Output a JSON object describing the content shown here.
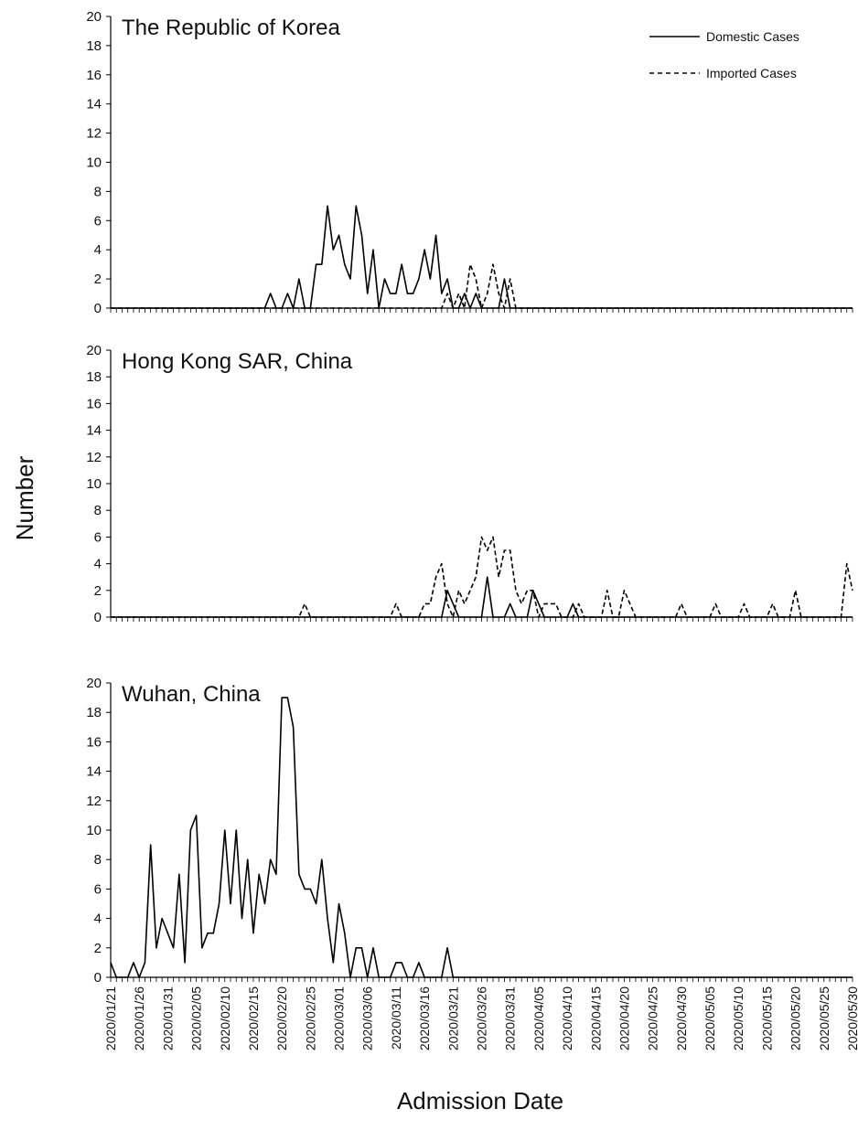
{
  "figure": {
    "ylabel": "Number",
    "xlabel": "Admission Date",
    "legend": {
      "domestic": "Domestic Cases",
      "imported": "Imported Cases"
    }
  },
  "chart_data": [
    {
      "type": "line",
      "title": "The Republic of Korea",
      "ylim": [
        0,
        20
      ],
      "yticks": [
        0,
        2,
        4,
        6,
        8,
        10,
        12,
        14,
        16,
        18,
        20
      ],
      "legend_position": "top-right",
      "x_range": [
        "2020/01/21",
        "2020/05/30"
      ],
      "series": [
        {
          "name": "Domestic Cases",
          "style": "solid",
          "points": [
            [
              "2020/01/21",
              0
            ],
            [
              "2020/02/17",
              0
            ],
            [
              "2020/02/18",
              1
            ],
            [
              "2020/02/19",
              0
            ],
            [
              "2020/02/20",
              0
            ],
            [
              "2020/02/21",
              1
            ],
            [
              "2020/02/22",
              0
            ],
            [
              "2020/02/23",
              2
            ],
            [
              "2020/02/24",
              0
            ],
            [
              "2020/02/25",
              0
            ],
            [
              "2020/02/26",
              3
            ],
            [
              "2020/02/27",
              3
            ],
            [
              "2020/02/28",
              7
            ],
            [
              "2020/02/29",
              4
            ],
            [
              "2020/03/01",
              5
            ],
            [
              "2020/03/02",
              3
            ],
            [
              "2020/03/03",
              2
            ],
            [
              "2020/03/04",
              7
            ],
            [
              "2020/03/05",
              5
            ],
            [
              "2020/03/06",
              1
            ],
            [
              "2020/03/07",
              4
            ],
            [
              "2020/03/08",
              0
            ],
            [
              "2020/03/09",
              2
            ],
            [
              "2020/03/10",
              1
            ],
            [
              "2020/03/11",
              1
            ],
            [
              "2020/03/12",
              3
            ],
            [
              "2020/03/13",
              1
            ],
            [
              "2020/03/14",
              1
            ],
            [
              "2020/03/15",
              2
            ],
            [
              "2020/03/16",
              4
            ],
            [
              "2020/03/17",
              2
            ],
            [
              "2020/03/18",
              5
            ],
            [
              "2020/03/19",
              1
            ],
            [
              "2020/03/20",
              2
            ],
            [
              "2020/03/21",
              0
            ],
            [
              "2020/03/22",
              0
            ],
            [
              "2020/03/23",
              1
            ],
            [
              "2020/03/24",
              0
            ],
            [
              "2020/03/25",
              1
            ],
            [
              "2020/03/26",
              0
            ],
            [
              "2020/03/27",
              0
            ],
            [
              "2020/03/28",
              0
            ],
            [
              "2020/03/29",
              0
            ],
            [
              "2020/03/30",
              2
            ],
            [
              "2020/03/31",
              0
            ],
            [
              "2020/05/30",
              0
            ]
          ]
        },
        {
          "name": "Imported Cases",
          "style": "dashed",
          "points": [
            [
              "2020/01/21",
              0
            ],
            [
              "2020/03/19",
              0
            ],
            [
              "2020/03/20",
              1
            ],
            [
              "2020/03/21",
              0
            ],
            [
              "2020/03/22",
              1
            ],
            [
              "2020/03/23",
              0
            ],
            [
              "2020/03/24",
              3
            ],
            [
              "2020/03/25",
              2
            ],
            [
              "2020/03/26",
              0
            ],
            [
              "2020/03/27",
              1
            ],
            [
              "2020/03/28",
              3
            ],
            [
              "2020/03/29",
              1
            ],
            [
              "2020/03/30",
              0
            ],
            [
              "2020/03/31",
              2
            ],
            [
              "2020/04/01",
              0
            ],
            [
              "2020/05/30",
              0
            ]
          ]
        }
      ]
    },
    {
      "type": "line",
      "title": "Hong Kong SAR, China",
      "ylim": [
        0,
        20
      ],
      "yticks": [
        0,
        2,
        4,
        6,
        8,
        10,
        12,
        14,
        16,
        18,
        20
      ],
      "x_range": [
        "2020/01/21",
        "2020/05/30"
      ],
      "series": [
        {
          "name": "Domestic Cases",
          "style": "solid",
          "points": [
            [
              "2020/01/21",
              0
            ],
            [
              "2020/03/19",
              0
            ],
            [
              "2020/03/20",
              2
            ],
            [
              "2020/03/21",
              1
            ],
            [
              "2020/03/22",
              0
            ],
            [
              "2020/03/26",
              0
            ],
            [
              "2020/03/27",
              3
            ],
            [
              "2020/03/28",
              0
            ],
            [
              "2020/03/30",
              0
            ],
            [
              "2020/03/31",
              1
            ],
            [
              "2020/04/01",
              0
            ],
            [
              "2020/04/03",
              0
            ],
            [
              "2020/04/04",
              2
            ],
            [
              "2020/04/05",
              1
            ],
            [
              "2020/04/06",
              0
            ],
            [
              "2020/04/10",
              0
            ],
            [
              "2020/04/11",
              1
            ],
            [
              "2020/04/12",
              0
            ],
            [
              "2020/05/30",
              0
            ]
          ]
        },
        {
          "name": "Imported Cases",
          "style": "dashed",
          "points": [
            [
              "2020/01/21",
              0
            ],
            [
              "2020/02/23",
              0
            ],
            [
              "2020/02/24",
              1
            ],
            [
              "2020/02/25",
              0
            ],
            [
              "2020/03/10",
              0
            ],
            [
              "2020/03/11",
              1
            ],
            [
              "2020/03/12",
              0
            ],
            [
              "2020/03/15",
              0
            ],
            [
              "2020/03/16",
              1
            ],
            [
              "2020/03/17",
              1
            ],
            [
              "2020/03/18",
              3
            ],
            [
              "2020/03/19",
              4
            ],
            [
              "2020/03/20",
              1
            ],
            [
              "2020/03/21",
              0
            ],
            [
              "2020/03/22",
              2
            ],
            [
              "2020/03/23",
              1
            ],
            [
              "2020/03/24",
              2
            ],
            [
              "2020/03/25",
              3
            ],
            [
              "2020/03/26",
              6
            ],
            [
              "2020/03/27",
              5
            ],
            [
              "2020/03/28",
              6
            ],
            [
              "2020/03/29",
              3
            ],
            [
              "2020/03/30",
              5
            ],
            [
              "2020/03/31",
              5
            ],
            [
              "2020/04/01",
              2
            ],
            [
              "2020/04/02",
              1
            ],
            [
              "2020/04/03",
              2
            ],
            [
              "2020/04/04",
              2
            ],
            [
              "2020/04/05",
              0
            ],
            [
              "2020/04/06",
              1
            ],
            [
              "2020/04/07",
              1
            ],
            [
              "2020/04/08",
              1
            ],
            [
              "2020/04/09",
              0
            ],
            [
              "2020/04/11",
              0
            ],
            [
              "2020/04/12",
              1
            ],
            [
              "2020/04/13",
              0
            ],
            [
              "2020/04/16",
              0
            ],
            [
              "2020/04/17",
              2
            ],
            [
              "2020/04/18",
              0
            ],
            [
              "2020/04/19",
              0
            ],
            [
              "2020/04/20",
              2
            ],
            [
              "2020/04/21",
              1
            ],
            [
              "2020/04/22",
              0
            ],
            [
              "2020/04/29",
              0
            ],
            [
              "2020/04/30",
              1
            ],
            [
              "2020/05/01",
              0
            ],
            [
              "2020/05/05",
              0
            ],
            [
              "2020/05/06",
              1
            ],
            [
              "2020/05/07",
              0
            ],
            [
              "2020/05/10",
              0
            ],
            [
              "2020/05/11",
              1
            ],
            [
              "2020/05/12",
              0
            ],
            [
              "2020/05/15",
              0
            ],
            [
              "2020/05/16",
              1
            ],
            [
              "2020/05/17",
              0
            ],
            [
              "2020/05/19",
              0
            ],
            [
              "2020/05/20",
              2
            ],
            [
              "2020/05/21",
              0
            ],
            [
              "2020/05/28",
              0
            ],
            [
              "2020/05/29",
              4
            ],
            [
              "2020/05/30",
              2
            ]
          ]
        }
      ]
    },
    {
      "type": "line",
      "title": "Wuhan, China",
      "ylim": [
        0,
        20
      ],
      "yticks": [
        0,
        2,
        4,
        6,
        8,
        10,
        12,
        14,
        16,
        18,
        20
      ],
      "x_range": [
        "2020/01/21",
        "2020/05/30"
      ],
      "xticks": [
        "2020/01/21",
        "2020/01/26",
        "2020/01/31",
        "2020/02/05",
        "2020/02/10",
        "2020/02/15",
        "2020/02/20",
        "2020/02/25",
        "2020/03/01",
        "2020/03/06",
        "2020/03/11",
        "2020/03/16",
        "2020/03/21",
        "2020/03/26",
        "2020/03/31",
        "2020/04/05",
        "2020/04/10",
        "2020/04/15",
        "2020/04/20",
        "2020/04/25",
        "2020/04/30",
        "2020/05/05",
        "2020/05/10",
        "2020/05/15",
        "2020/05/20",
        "2020/05/25",
        "2020/05/30"
      ],
      "series": [
        {
          "name": "Domestic Cases",
          "style": "solid",
          "points": [
            [
              "2020/01/21",
              1
            ],
            [
              "2020/01/22",
              0
            ],
            [
              "2020/01/23",
              0
            ],
            [
              "2020/01/24",
              0
            ],
            [
              "2020/01/25",
              1
            ],
            [
              "2020/01/26",
              0
            ],
            [
              "2020/01/27",
              1
            ],
            [
              "2020/01/28",
              9
            ],
            [
              "2020/01/29",
              2
            ],
            [
              "2020/01/30",
              4
            ],
            [
              "2020/01/31",
              3
            ],
            [
              "2020/02/01",
              2
            ],
            [
              "2020/02/02",
              7
            ],
            [
              "2020/02/03",
              1
            ],
            [
              "2020/02/04",
              10
            ],
            [
              "2020/02/05",
              11
            ],
            [
              "2020/02/06",
              2
            ],
            [
              "2020/02/07",
              3
            ],
            [
              "2020/02/08",
              3
            ],
            [
              "2020/02/09",
              5
            ],
            [
              "2020/02/10",
              10
            ],
            [
              "2020/02/11",
              5
            ],
            [
              "2020/02/12",
              10
            ],
            [
              "2020/02/13",
              4
            ],
            [
              "2020/02/14",
              8
            ],
            [
              "2020/02/15",
              3
            ],
            [
              "2020/02/16",
              7
            ],
            [
              "2020/02/17",
              5
            ],
            [
              "2020/02/18",
              8
            ],
            [
              "2020/02/19",
              7
            ],
            [
              "2020/02/20",
              19
            ],
            [
              "2020/02/21",
              19
            ],
            [
              "2020/02/22",
              17
            ],
            [
              "2020/02/23",
              7
            ],
            [
              "2020/02/24",
              6
            ],
            [
              "2020/02/25",
              6
            ],
            [
              "2020/02/26",
              5
            ],
            [
              "2020/02/27",
              8
            ],
            [
              "2020/02/28",
              4
            ],
            [
              "2020/02/29",
              1
            ],
            [
              "2020/03/01",
              5
            ],
            [
              "2020/03/02",
              3
            ],
            [
              "2020/03/03",
              0
            ],
            [
              "2020/03/04",
              2
            ],
            [
              "2020/03/05",
              2
            ],
            [
              "2020/03/06",
              0
            ],
            [
              "2020/03/07",
              2
            ],
            [
              "2020/03/08",
              0
            ],
            [
              "2020/03/10",
              0
            ],
            [
              "2020/03/11",
              1
            ],
            [
              "2020/03/12",
              1
            ],
            [
              "2020/03/13",
              0
            ],
            [
              "2020/03/14",
              0
            ],
            [
              "2020/03/15",
              1
            ],
            [
              "2020/03/16",
              0
            ],
            [
              "2020/03/19",
              0
            ],
            [
              "2020/03/20",
              2
            ],
            [
              "2020/03/21",
              0
            ],
            [
              "2020/05/30",
              0
            ]
          ]
        }
      ]
    }
  ]
}
